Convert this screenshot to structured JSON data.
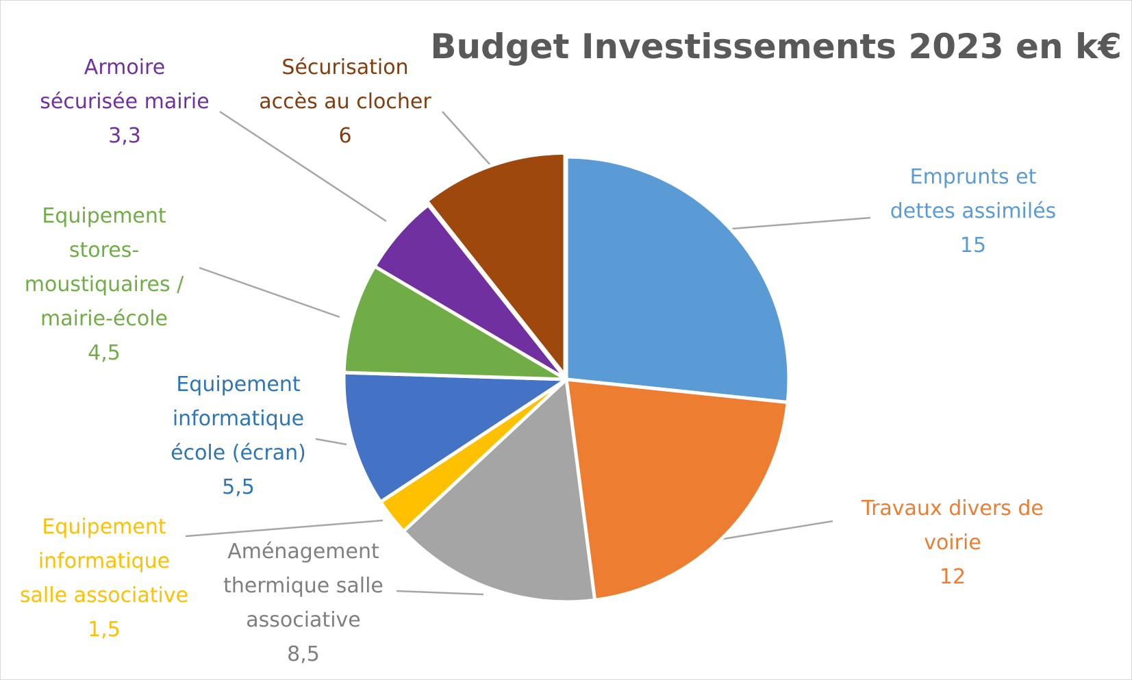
{
  "chart_data": {
    "type": "pie",
    "title": "Budget Investissements 2023 en k€",
    "slices": [
      {
        "label_lines": [
          "Emprunts et",
          "dettes assimilés"
        ],
        "value": 15,
        "value_label": "15",
        "color": "#5b9bd5"
      },
      {
        "label_lines": [
          "Travaux divers de",
          "voirie"
        ],
        "value": 12,
        "value_label": "12",
        "color": "#ed7d31"
      },
      {
        "label_lines": [
          "Aménagement",
          "thermique salle",
          "associative"
        ],
        "value": 8.5,
        "value_label": "8,5",
        "color": "#a5a5a5"
      },
      {
        "label_lines": [
          "Equipement",
          "informatique",
          "salle associative"
        ],
        "value": 1.5,
        "value_label": "1,5",
        "color": "#ffc000"
      },
      {
        "label_lines": [
          "Equipement",
          "informatique",
          "école (écran)"
        ],
        "value": 5.5,
        "value_label": "5,5",
        "color": "#4472c4"
      },
      {
        "label_lines": [
          "Equipement",
          "stores-",
          "moustiquaires /",
          "mairie-école"
        ],
        "value": 4.5,
        "value_label": "4,5",
        "color": "#70ad47"
      },
      {
        "label_lines": [
          "Armoire",
          "sécurisée mairie"
        ],
        "value": 3.3,
        "value_label": "3,3",
        "color": "#7030a0"
      },
      {
        "label_lines": [
          "Sécurisation",
          "accès au clocher"
        ],
        "value": 6,
        "value_label": "6",
        "color": "#9e480e"
      }
    ],
    "label_colors": [
      "#5b9bd5",
      "#ed7d31",
      "#7f7f7f",
      "#ffc000",
      "#2e75b6",
      "#70ad47",
      "#7030a0",
      "#843c0c"
    ],
    "legend": "none"
  }
}
